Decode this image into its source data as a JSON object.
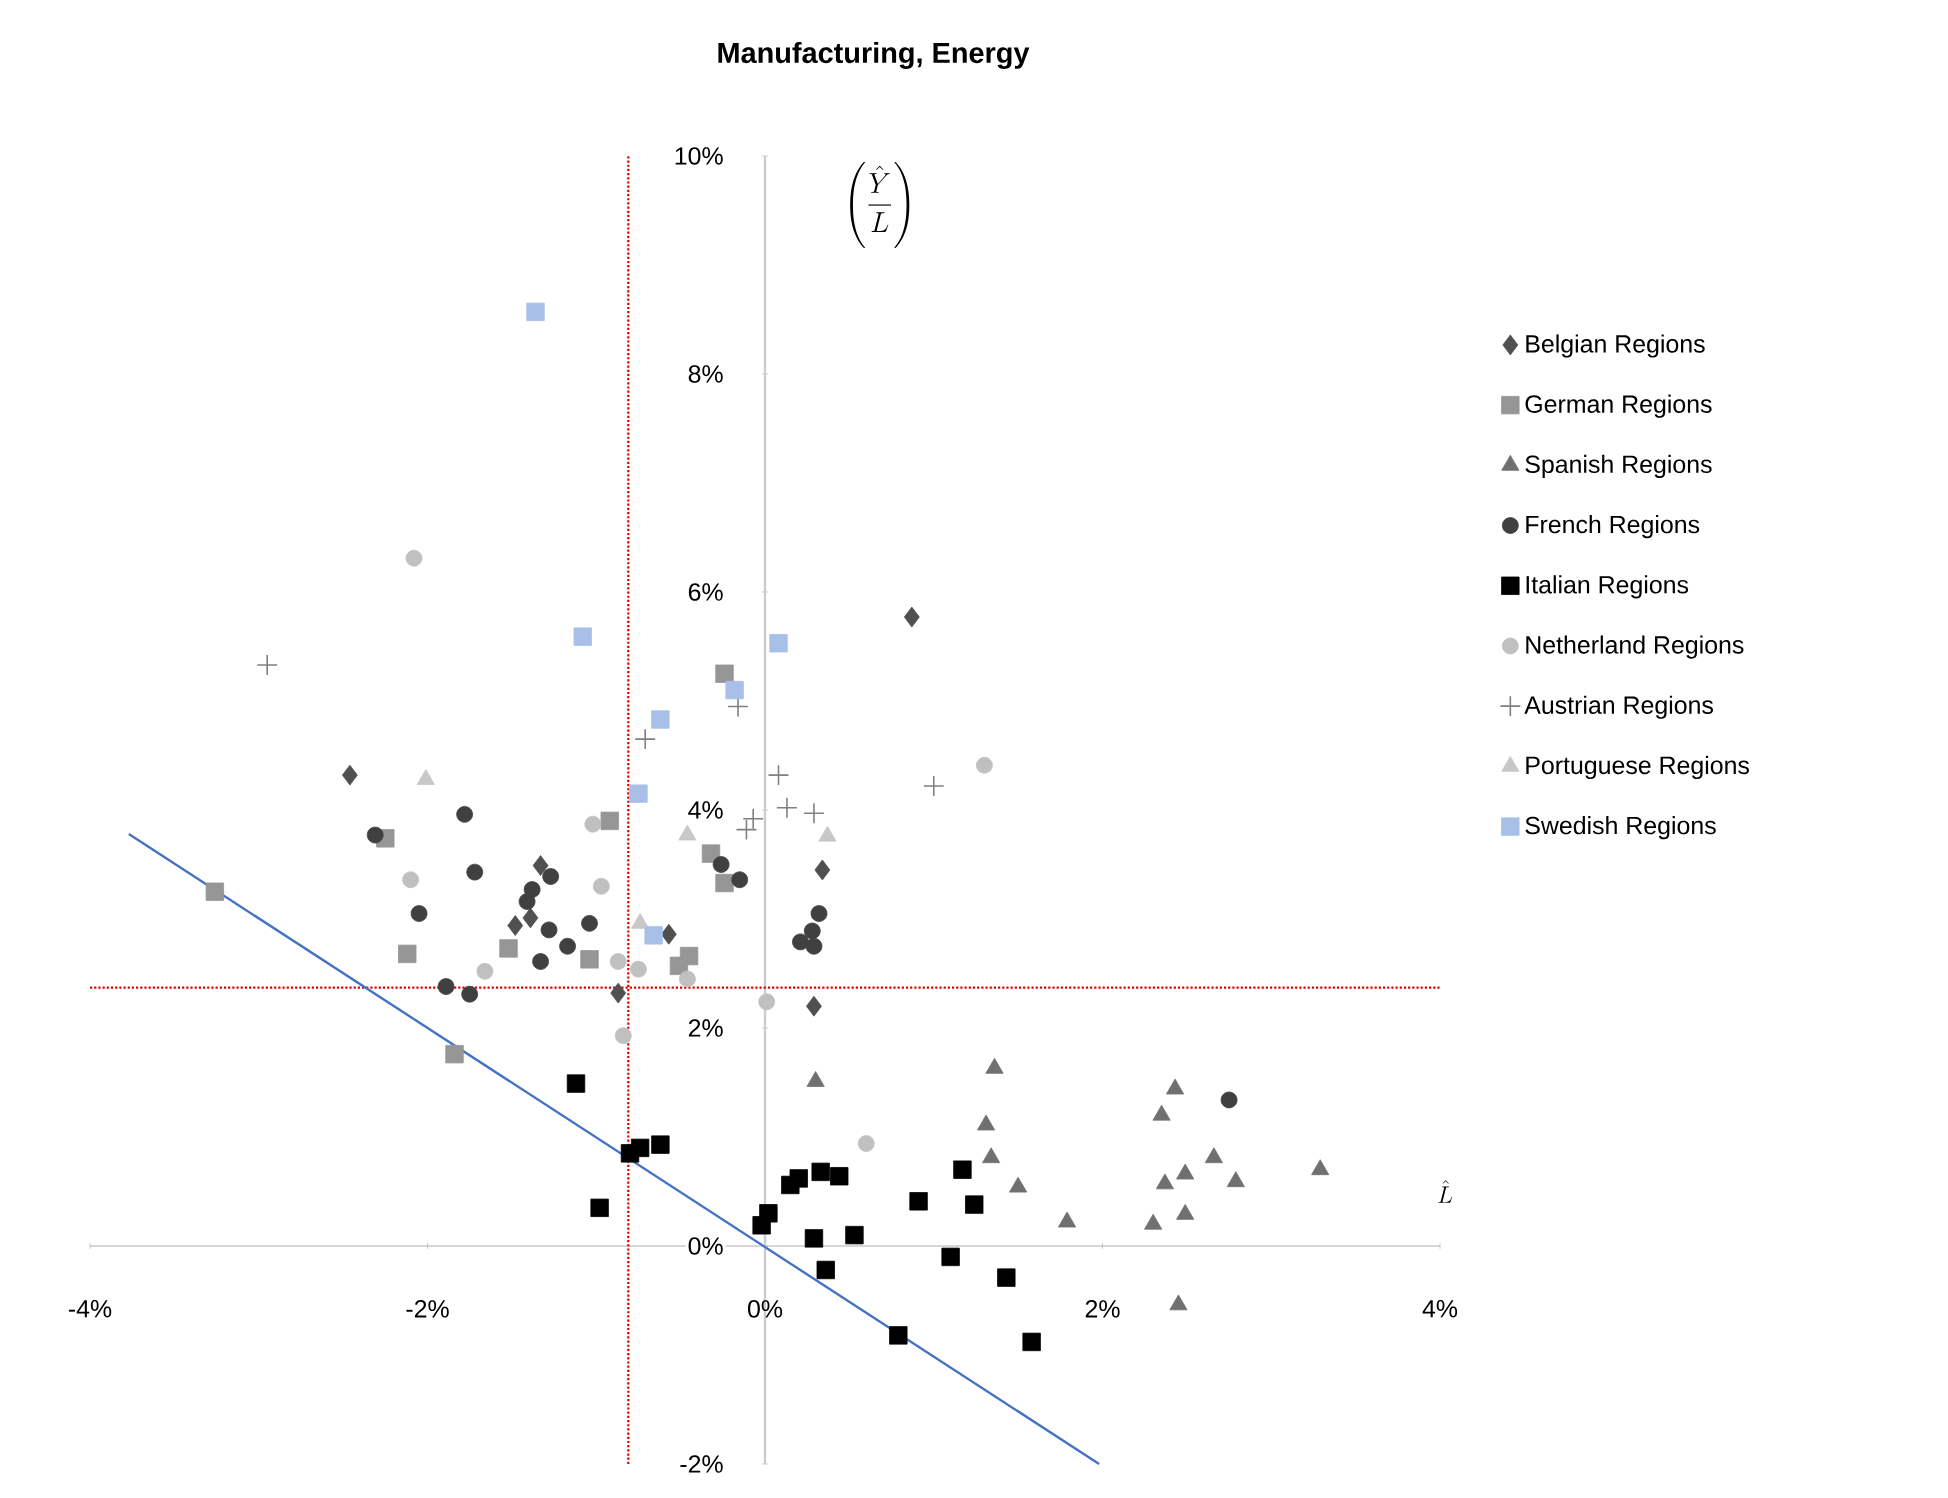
{
  "chart_data": {
    "type": "scatter",
    "title": "Manufacturing, Energy",
    "xlabel": "\\hat{L}",
    "ylabel": "\\left(\\frac{\\hat{Y}}{L}\\right)",
    "xlim": [
      -4,
      4
    ],
    "ylim": [
      -2,
      10
    ],
    "xticks": [
      {
        "value": -4,
        "label": "-4%"
      },
      {
        "value": -2,
        "label": "-2%"
      },
      {
        "value": 0,
        "label": "0%"
      },
      {
        "value": 2,
        "label": "2%"
      },
      {
        "value": 4,
        "label": "4%"
      }
    ],
    "yticks": [
      {
        "value": -2,
        "label": "-2%"
      },
      {
        "value": 0,
        "label": "0%"
      },
      {
        "value": 2,
        "label": "2%"
      },
      {
        "value": 4,
        "label": "4%"
      },
      {
        "value": 6,
        "label": "6%"
      },
      {
        "value": 8,
        "label": "8%"
      },
      {
        "value": 10,
        "label": "10%"
      }
    ],
    "legend": "right",
    "ref_lines": [
      {
        "axis": "x",
        "value": -0.81,
        "color": "#e00000",
        "line_style": "dotted"
      },
      {
        "axis": "y",
        "value": 2.37,
        "color": "#e00000",
        "line_style": "dotted"
      }
    ],
    "series": [
      {
        "name": "Belgian Regions",
        "color": "#505050",
        "marker": "diamond",
        "x": [
          0.87,
          -2.46,
          -1.33,
          -1.48,
          -1.39,
          -0.57,
          -0.87,
          0.34,
          0.29
        ],
        "values": [
          5.77,
          4.32,
          3.49,
          2.94,
          3.01,
          2.86,
          2.32,
          3.45,
          2.2
        ]
      },
      {
        "name": "German Regions",
        "color": "#969696",
        "marker": "square",
        "x": [
          -2.25,
          -3.26,
          -2.12,
          -1.52,
          -1.04,
          -0.92,
          -1.84,
          -0.24,
          -0.32,
          -0.24,
          -0.45,
          -0.51
        ],
        "values": [
          3.74,
          3.25,
          2.68,
          2.73,
          2.63,
          3.9,
          1.76,
          5.25,
          3.6,
          3.33,
          2.66,
          2.57
        ]
      },
      {
        "name": "Spanish Regions",
        "color": "#707070",
        "marker": "triangle",
        "x": [
          0.3,
          1.36,
          1.31,
          1.34,
          1.5,
          1.79,
          2.43,
          2.35,
          2.66,
          2.49,
          2.37,
          2.79,
          3.29,
          2.49,
          2.3,
          2.45
        ],
        "values": [
          1.51,
          1.63,
          1.11,
          0.81,
          0.54,
          0.22,
          1.44,
          1.2,
          0.81,
          0.66,
          0.57,
          0.59,
          0.7,
          0.29,
          0.2,
          -0.54
        ]
      },
      {
        "name": "French Regions",
        "color": "#404040",
        "marker": "circle",
        "x": [
          -2.31,
          -1.78,
          -1.72,
          -2.05,
          -1.27,
          -1.38,
          -1.41,
          -1.28,
          -1.04,
          -1.17,
          -1.33,
          -1.89,
          -1.75,
          -0.26,
          -0.15,
          0.32,
          0.28,
          0.21,
          0.29,
          2.75
        ],
        "values": [
          3.77,
          3.96,
          3.43,
          3.05,
          3.39,
          3.27,
          3.16,
          2.9,
          2.96,
          2.75,
          2.61,
          2.38,
          2.31,
          3.5,
          3.36,
          3.05,
          2.89,
          2.79,
          2.75,
          1.34
        ]
      },
      {
        "name": "Italian Regions",
        "color": "#000000",
        "marker": "square",
        "x": [
          -1.12,
          -0.98,
          -0.8,
          -0.74,
          -0.62,
          -0.02,
          0.02,
          0.15,
          0.2,
          0.33,
          0.44,
          0.29,
          0.53,
          0.36,
          0.79,
          0.91,
          1.17,
          1.24,
          1.1,
          1.43,
          1.58
        ],
        "values": [
          1.49,
          0.35,
          0.85,
          0.9,
          0.93,
          0.19,
          0.3,
          0.56,
          0.62,
          0.68,
          0.64,
          0.07,
          0.1,
          -0.22,
          -0.82,
          0.41,
          0.7,
          0.38,
          -0.1,
          -0.29,
          -0.88
        ]
      },
      {
        "name": "Netherland Regions",
        "color": "#c0c0c0",
        "marker": "circle",
        "x": [
          -2.08,
          -2.1,
          -1.66,
          -1.02,
          -0.97,
          -0.87,
          -0.75,
          -0.46,
          0.01,
          -0.84,
          1.3,
          0.6
        ],
        "values": [
          6.31,
          3.36,
          2.52,
          3.87,
          3.3,
          2.61,
          2.54,
          2.45,
          2.24,
          1.93,
          4.41,
          0.94
        ]
      },
      {
        "name": "Austrian Regions",
        "color": "#808080",
        "marker": "cross",
        "x": [
          -2.95,
          -0.71,
          -0.16,
          0.08,
          0.13,
          0.29,
          -0.07,
          -0.11,
          1.0
        ],
        "values": [
          5.33,
          4.65,
          4.95,
          4.32,
          4.02,
          3.97,
          3.92,
          3.82,
          4.22
        ]
      },
      {
        "name": "Portuguese Regions",
        "color": "#c8c8c8",
        "marker": "triangle",
        "x": [
          -2.01,
          -0.46,
          -0.74,
          0.37
        ],
        "values": [
          4.28,
          3.77,
          2.96,
          3.76
        ]
      },
      {
        "name": "Swedish Regions",
        "color": "#a8c0e8",
        "marker": "square",
        "x": [
          -1.36,
          -1.08,
          0.08,
          -0.18,
          -0.62,
          -0.75,
          -0.66
        ],
        "values": [
          8.57,
          5.59,
          5.53,
          5.1,
          4.83,
          4.15,
          2.85
        ]
      },
      {
        "type": "line",
        "color": "#4472c4",
        "marker": "none",
        "line_style": "solid",
        "x": [
          -3.77,
          1.98
        ],
        "values": [
          3.78,
          -2.0
        ]
      }
    ]
  }
}
